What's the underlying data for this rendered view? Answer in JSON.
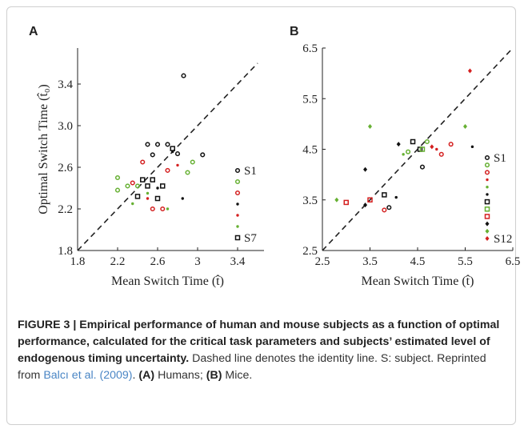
{
  "chart_data": [
    {
      "type": "scatter",
      "panel": "A",
      "xlabel": "Mean Switch Time (t̂)",
      "ylabel": "Optimal Switch Time (t̂₀)",
      "xlim": [
        1.8,
        3.6
      ],
      "ylim": [
        1.8,
        3.8
      ],
      "xticks": [
        1.8,
        2.2,
        2.6,
        3,
        3.4
      ],
      "yticks": [
        1.8,
        2.2,
        2.6,
        {
          "value": 3,
          "label": "3.0"
        },
        3.4
      ],
      "identity_line": true,
      "series": [
        {
          "name": "S1",
          "color": "#111111",
          "marker": "circle",
          "x": [
            2.86,
            2.5,
            2.6,
            2.7,
            2.8,
            3.05,
            2.55
          ],
          "values": [
            3.48,
            2.82,
            2.82,
            2.82,
            2.73,
            2.72,
            2.72
          ]
        },
        {
          "color": "#66b032",
          "marker": "circle",
          "x": [
            2.2,
            2.3,
            2.9,
            2.4,
            2.2,
            2.95
          ],
          "values": [
            2.38,
            2.42,
            2.55,
            2.42,
            2.5,
            2.65
          ]
        },
        {
          "color": "#d42020",
          "marker": "circle",
          "x": [
            2.45,
            2.55,
            2.65,
            2.35,
            2.7
          ],
          "values": [
            2.65,
            2.2,
            2.2,
            2.45,
            2.57
          ]
        },
        {
          "color": "#111111",
          "marker": "dot",
          "x": [
            2.85,
            2.75,
            2.6
          ],
          "values": [
            2.3,
            2.75,
            2.4
          ]
        },
        {
          "color": "#d42020",
          "marker": "dot",
          "x": [
            2.5,
            2.8
          ],
          "values": [
            2.3,
            2.62
          ]
        },
        {
          "color": "#66b032",
          "marker": "dot",
          "x": [
            2.7,
            2.5,
            2.35
          ],
          "values": [
            2.2,
            2.35,
            2.25
          ]
        },
        {
          "name": "S7",
          "color": "#111111",
          "marker": "square",
          "x": [
            2.45,
            2.55,
            2.65,
            2.4,
            2.5,
            2.75,
            2.6
          ],
          "values": [
            2.48,
            2.48,
            2.42,
            2.32,
            2.42,
            2.78,
            2.3
          ]
        }
      ]
    },
    {
      "type": "scatter",
      "panel": "B",
      "xlabel": "Mean Switch Time (t̂)",
      "xlim": [
        2.5,
        6.5
      ],
      "ylim": [
        2.5,
        6.5
      ],
      "xticks": [
        2.5,
        3.5,
        4.5,
        5.5,
        6.5
      ],
      "yticks": [
        2.5,
        3.5,
        4.5,
        5.5,
        6.5
      ],
      "identity_line": true,
      "series": [
        {
          "name": "S1",
          "color": "#111111",
          "marker": "circle",
          "x": [
            4.6,
            3.9
          ],
          "values": [
            4.15,
            3.35
          ]
        },
        {
          "color": "#66b032",
          "marker": "circle",
          "x": [
            4.7,
            4.3
          ],
          "values": [
            4.65,
            4.45
          ]
        },
        {
          "color": "#d42020",
          "marker": "circle",
          "x": [
            5.2,
            3.8,
            5.0
          ],
          "values": [
            4.6,
            3.3,
            4.4
          ]
        },
        {
          "color": "#d42020",
          "marker": "dot",
          "x": [
            4.9
          ],
          "values": [
            4.5
          ]
        },
        {
          "color": "#66b032",
          "marker": "dot",
          "x": [
            4.2
          ],
          "values": [
            4.4
          ]
        },
        {
          "color": "#111111",
          "marker": "dot",
          "x": [
            5.65,
            4.05
          ],
          "values": [
            4.55,
            3.55
          ]
        },
        {
          "color": "#111111",
          "marker": "square",
          "x": [
            4.4,
            3.8,
            4.55
          ],
          "values": [
            4.65,
            3.6,
            4.5
          ]
        },
        {
          "color": "#66b032",
          "marker": "square",
          "x": [
            4.6
          ],
          "values": [
            4.5
          ]
        },
        {
          "color": "#d42020",
          "marker": "square",
          "x": [
            3.0,
            3.5
          ],
          "values": [
            3.45,
            3.5
          ]
        },
        {
          "color": "#111111",
          "marker": "diamond",
          "x": [
            3.4,
            4.1,
            3.4
          ],
          "values": [
            4.1,
            4.6,
            3.4
          ]
        },
        {
          "color": "#66b032",
          "marker": "diamond",
          "x": [
            3.5,
            5.5,
            2.8
          ],
          "values": [
            4.95,
            4.95,
            3.5
          ]
        },
        {
          "name": "S12",
          "color": "#d42020",
          "marker": "diamond",
          "x": [
            5.6,
            4.8
          ],
          "values": [
            6.05,
            4.55
          ]
        }
      ]
    }
  ],
  "caption": {
    "segments": [
      {
        "text": "FIGURE 3 | Empirical performance of human and mouse subjects as a function of optimal performance, calculated for the critical task parameters and subjects’ estimated level of endogenous timing uncertainty.",
        "bold": true
      },
      {
        "text": " Dashed line denotes the identity line. S: subject. Reprinted from "
      },
      {
        "text": "Balcı et al. (2009)",
        "cite": true
      },
      {
        "text": ". "
      },
      {
        "text": "(A)",
        "bold": true
      },
      {
        "text": " Humans; "
      },
      {
        "text": "(B)",
        "bold": true
      },
      {
        "text": " Mice."
      }
    ]
  }
}
